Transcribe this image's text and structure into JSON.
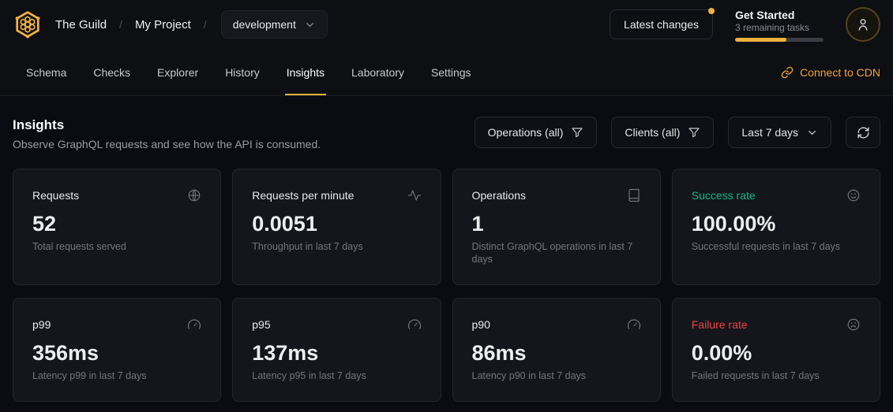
{
  "colors": {
    "accent": "#f2b13d",
    "cdn_link": "#f4a13f",
    "success": "#10b981",
    "danger": "#ef4444",
    "page_background": "#0a0c12",
    "card_background": "#14161b"
  },
  "header": {
    "org": "The Guild",
    "separator": "/",
    "project": "My Project",
    "target_selector": {
      "value": "development"
    },
    "latest_changes_label": "Latest changes",
    "get_started": {
      "title": "Get Started",
      "subtitle": "3 remaining tasks",
      "progress_percent": 58
    }
  },
  "nav": {
    "tabs": [
      {
        "label": "Schema",
        "active": false
      },
      {
        "label": "Checks",
        "active": false
      },
      {
        "label": "Explorer",
        "active": false
      },
      {
        "label": "History",
        "active": false
      },
      {
        "label": "Insights",
        "active": true
      },
      {
        "label": "Laboratory",
        "active": false
      },
      {
        "label": "Settings",
        "active": false
      }
    ],
    "cdn_link_label": "Connect to CDN"
  },
  "page": {
    "title": "Insights",
    "subtitle": "Observe GraphQL requests and see how the API is consumed."
  },
  "filters": {
    "operations_label": "Operations (all)",
    "clients_label": "Clients (all)",
    "period_label": "Last 7 days"
  },
  "cards": [
    {
      "title": "Requests",
      "icon": "globe-icon",
      "value": "52",
      "description": "Total requests served",
      "tone": null
    },
    {
      "title": "Requests per minute",
      "icon": "activity-icon",
      "value": "0.0051",
      "description": "Throughput in last 7 days",
      "tone": null
    },
    {
      "title": "Operations",
      "icon": "book-icon",
      "value": "1",
      "description": "Distinct GraphQL operations in last 7 days",
      "tone": null
    },
    {
      "title": "Success rate",
      "icon": "smile-icon",
      "value": "100.00%",
      "description": "Successful requests in last 7 days",
      "tone": "success"
    },
    {
      "title": "p99",
      "icon": "gauge-icon",
      "value": "356ms",
      "description": "Latency p99 in last 7 days",
      "tone": null
    },
    {
      "title": "p95",
      "icon": "gauge-icon",
      "value": "137ms",
      "description": "Latency p95 in last 7 days",
      "tone": null
    },
    {
      "title": "p90",
      "icon": "gauge-icon",
      "value": "86ms",
      "description": "Latency p90 in last 7 days",
      "tone": null
    },
    {
      "title": "Failure rate",
      "icon": "frown-icon",
      "value": "0.00%",
      "description": "Failed requests in last 7 days",
      "tone": "danger"
    }
  ]
}
